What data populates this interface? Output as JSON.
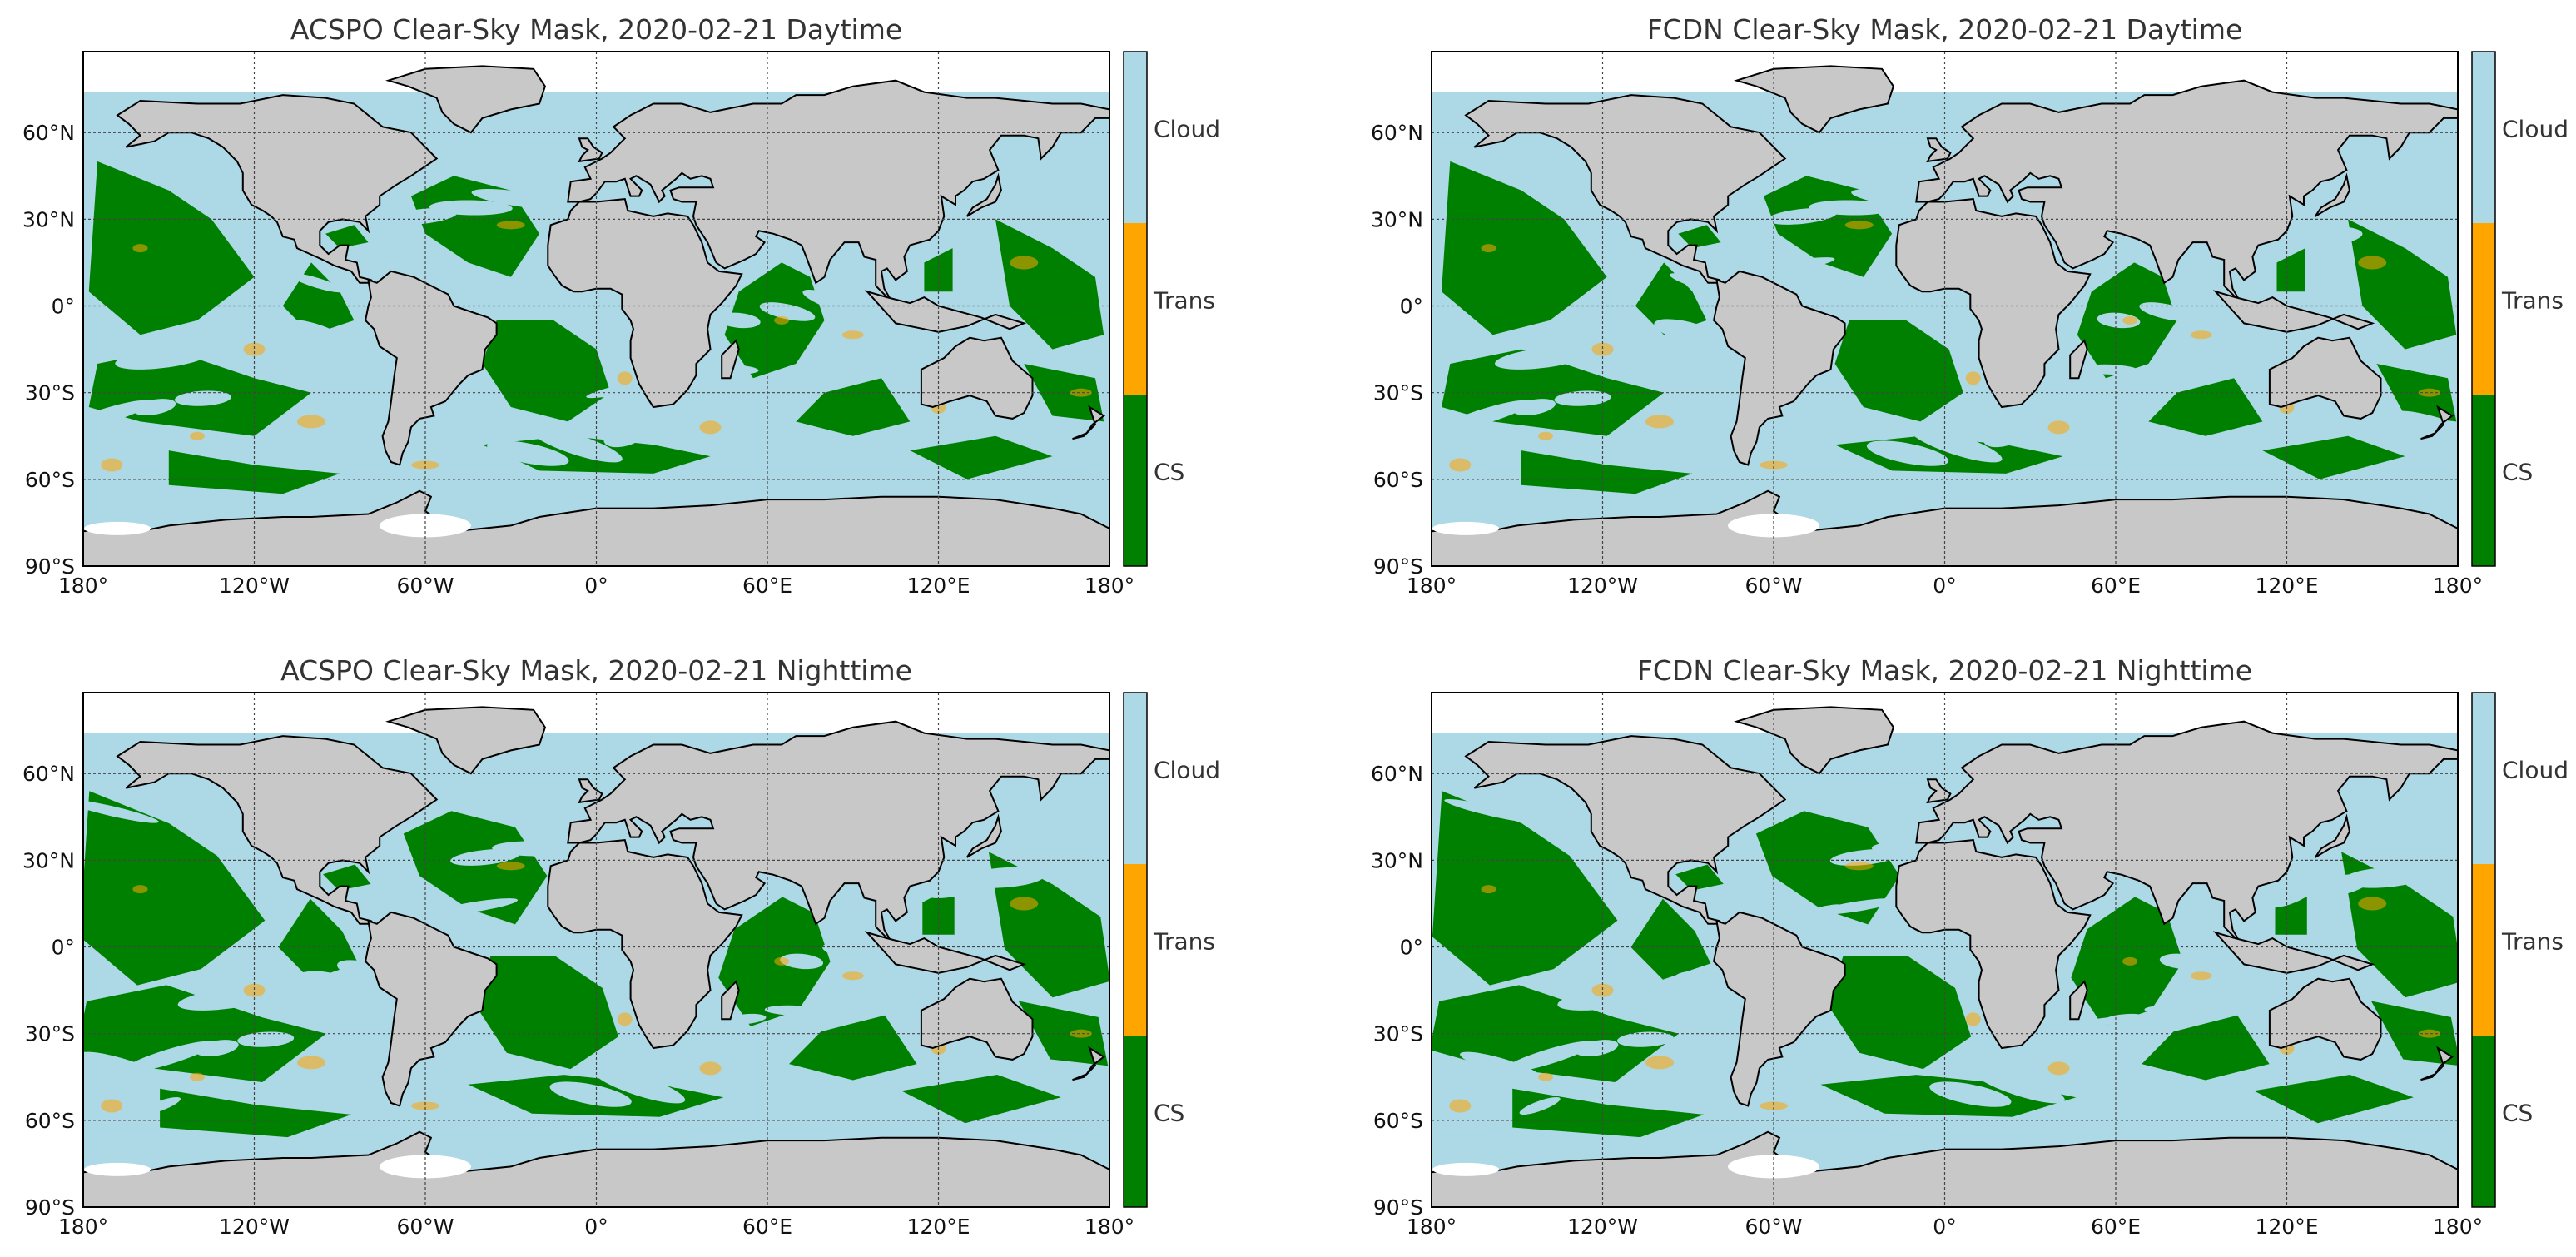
{
  "figure": {
    "colors": {
      "cloud": "#ADD8E6",
      "trans": "#FFA500",
      "clear_sky": "#008000",
      "land": "#C8C8C8",
      "ice": "#FFFFFF",
      "coast": "#000000",
      "grid": "#444444"
    },
    "panels": [
      {
        "title": "ACSPO Clear-Sky Mask, 2020-02-21 Daytime",
        "algorithm": "ACSPO",
        "time": "Daytime"
      },
      {
        "title": "FCDN Clear-Sky Mask, 2020-02-21 Daytime",
        "algorithm": "FCDN",
        "time": "Daytime"
      },
      {
        "title": "ACSPO Clear-Sky Mask, 2020-02-21 Nighttime",
        "algorithm": "ACSPO",
        "time": "Nighttime"
      },
      {
        "title": "FCDN Clear-Sky Mask, 2020-02-21 Nighttime",
        "algorithm": "FCDN",
        "time": "Nighttime"
      }
    ],
    "lat_ticks": [
      {
        "lat": 60,
        "label": "60°N"
      },
      {
        "lat": 30,
        "label": "30°N"
      },
      {
        "lat": 0,
        "label": "0°"
      },
      {
        "lat": -30,
        "label": "30°S"
      },
      {
        "lat": -60,
        "label": "60°S"
      },
      {
        "lat": -90,
        "label": "90°S"
      }
    ],
    "lon_ticks": [
      {
        "lon": -180,
        "label": "180°"
      },
      {
        "lon": -120,
        "label": "120°W"
      },
      {
        "lon": -60,
        "label": "60°W"
      },
      {
        "lon": 0,
        "label": "0°"
      },
      {
        "lon": 60,
        "label": "60°E"
      },
      {
        "lon": 120,
        "label": "120°E"
      },
      {
        "lon": 180,
        "label": "180°"
      }
    ],
    "lat_range": [
      -90,
      90
    ],
    "lon_range": [
      -180,
      180
    ],
    "colorbar": {
      "labels": [
        "Cloud",
        "Trans",
        "CS"
      ]
    }
  }
}
